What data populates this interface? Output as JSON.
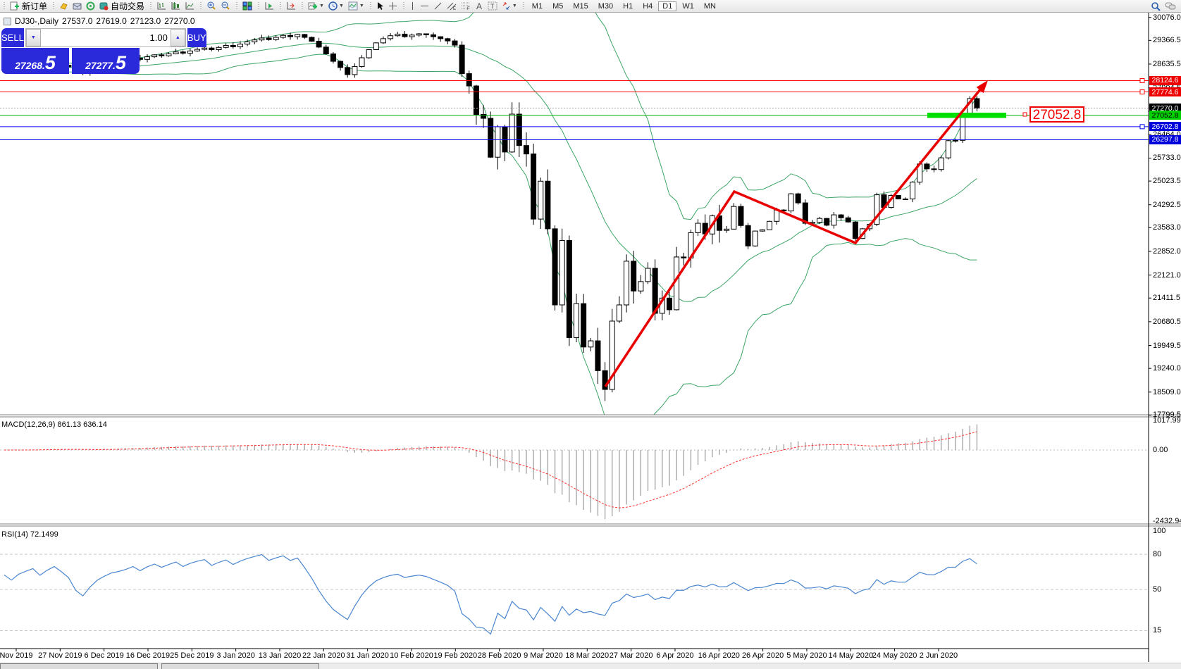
{
  "toolbar": {
    "new_order_label": "新订单",
    "auto_trading_label": "自动交易",
    "tool_groups": [
      {
        "items": [
          {
            "id": "new-order-icon",
            "label": "新订单"
          }
        ]
      },
      {
        "items": [
          {
            "id": "metaeditor-icon"
          },
          {
            "id": "mailbox-icon"
          },
          {
            "id": "signals-icon"
          },
          {
            "id": "auto-trading-icon",
            "label": "自动交易"
          }
        ]
      },
      {
        "items": [
          {
            "id": "bar-chart-icon"
          },
          {
            "id": "candle-chart-icon"
          },
          {
            "id": "line-chart-icon"
          }
        ]
      },
      {
        "items": [
          {
            "id": "zoom-in-icon"
          },
          {
            "id": "zoom-out-icon"
          }
        ]
      },
      {
        "items": [
          {
            "id": "tile-windows-icon"
          }
        ]
      },
      {
        "items": [
          {
            "id": "auto-scroll-icon"
          }
        ]
      },
      {
        "items": [
          {
            "id": "chart-shift-icon"
          }
        ]
      },
      {
        "items": [
          {
            "id": "indicators-icon",
            "caret": true
          },
          {
            "id": "periods-icon",
            "caret": true
          },
          {
            "id": "templates-icon",
            "caret": true
          }
        ]
      },
      {
        "items": [
          {
            "id": "cursor-icon"
          },
          {
            "id": "crosshair-icon"
          }
        ]
      },
      {
        "items": [
          {
            "id": "vertical-line-icon"
          },
          {
            "id": "horizontal-line-icon"
          },
          {
            "id": "trend-line-icon"
          },
          {
            "id": "channel-icon"
          },
          {
            "id": "fibonacci-icon"
          },
          {
            "id": "text-icon"
          },
          {
            "id": "text-label-icon"
          },
          {
            "id": "arrows-icon",
            "caret": true
          }
        ]
      }
    ],
    "timeframes": [
      "M1",
      "M5",
      "M15",
      "M30",
      "H1",
      "H4",
      "D1",
      "W1",
      "MN"
    ],
    "active_timeframe": "D1",
    "right_icons": [
      {
        "id": "search-icon"
      },
      {
        "id": "chat-icon"
      }
    ]
  },
  "chart_header": {
    "symbol_period": "DJ30-,Daily",
    "open": "27537.0",
    "high": "27619.0",
    "low": "27123.0",
    "close": "27270.0"
  },
  "one_click": {
    "sell_label": "SELL",
    "buy_label": "BUY",
    "volume": "1.00",
    "sell_big": "27268",
    "sell_frac": "5",
    "buy_big": "27277",
    "buy_frac": "5"
  },
  "price_axis": {
    "ticks": [
      30076.0,
      29366.5,
      28635.5,
      27904.5,
      27174.0,
      26464.0,
      25733.0,
      25023.5,
      24292.5,
      23583.0,
      22852.0,
      22121.0,
      21411.5,
      20680.5,
      19949.5,
      19240.0,
      18509.0,
      17799.5
    ]
  },
  "levels": [
    {
      "price": 28124.6,
      "label": "28124.6",
      "bg": "#ee0000",
      "fg": "#ffffff",
      "line": "#ff0000",
      "style": "solid",
      "anchor": true
    },
    {
      "price": 27774.6,
      "label": "27774.6",
      "bg": "#ee0000",
      "fg": "#ffffff",
      "line": "#ff0000",
      "style": "solid",
      "anchor": true
    },
    {
      "price": 27270.0,
      "label": "27270.0",
      "bg": "#000000",
      "fg": "#ffffff",
      "line": "#a8a8a8",
      "style": "dotted"
    },
    {
      "price": 27052.8,
      "label": "27052.8",
      "bg": "#00cf00",
      "fg": "#000000",
      "line": "#00b400",
      "style": "solid"
    },
    {
      "price": 26702.8,
      "label": "26702.8",
      "bg": "#0000dd",
      "fg": "#ffffff",
      "line": "#0000ee",
      "style": "solid",
      "anchor": true
    },
    {
      "price": 26297.8,
      "label": "26297.8",
      "bg": "#0000dd",
      "fg": "#ffffff",
      "line": "#0000ee",
      "style": "solid"
    }
  ],
  "annotations": {
    "callout_text": "27052.8",
    "highlight_color": "#00e000",
    "zigzag_color": "#e80000"
  },
  "macd": {
    "label": "MACD(12,26,9) 861.13 636.14",
    "axis_max": "1017.99",
    "axis_zero": "0.00",
    "axis_min": "-2432.94",
    "fast": 12,
    "slow": 26,
    "signal": 9
  },
  "rsi": {
    "label": "RSI(14) 72.1499",
    "period": 14,
    "axis_levels": [
      "100",
      "80",
      "50",
      "15"
    ]
  },
  "dates": [
    "Nov 2019",
    "27 Nov 2019",
    "6 Dec 2019",
    "16 Dec 2019",
    "25 Dec 2019",
    "3 Jan 2020",
    "13 Jan 2020",
    "22 Jan 2020",
    "31 Jan 2020",
    "10 Feb 2020",
    "19 Feb 2020",
    "28 Feb 2020",
    "9 Mar 2020",
    "18 Mar 2020",
    "27 Mar 2020",
    "6 Apr 2020",
    "16 Apr 2020",
    "26 Apr 2020",
    "5 May 2020",
    "14 May 2020",
    "24 May 2020",
    "2 Jun 2020"
  ],
  "chart_data": {
    "type": "candlestick",
    "symbol": "DJ30-",
    "period": "Daily",
    "indicators": [
      "Bollinger Bands(20,2)",
      "MACD(12,26,9)",
      "RSI(14)"
    ],
    "price_range": [
      17799.5,
      30076.0
    ],
    "closes": [
      28450,
      28410,
      28480,
      28520,
      28560,
      28510,
      28580,
      28640,
      28600,
      28550,
      28420,
      28350,
      28460,
      28560,
      28630,
      28690,
      28720,
      28760,
      28820,
      28780,
      28860,
      28920,
      28890,
      28950,
      29010,
      28970,
      29040,
      29090,
      29130,
      29080,
      29150,
      29210,
      29170,
      29250,
      29320,
      29380,
      29440,
      29390,
      29460,
      29520,
      29480,
      29550,
      29460,
      29340,
      29160,
      28950,
      28720,
      28530,
      28310,
      28560,
      28830,
      29080,
      29290,
      29420,
      29510,
      29560,
      29480,
      29530,
      29570,
      29540,
      29480,
      29420,
      29350,
      29220,
      28340,
      27960,
      27080,
      26960,
      25760,
      26700,
      25920,
      27090,
      26120,
      25860,
      23850,
      25020,
      23550,
      21200,
      23190,
      20190,
      21240,
      19900,
      20090,
      19170,
      18590,
      20700,
      21200,
      22550,
      21630,
      21920,
      22330,
      20940,
      21410,
      21050,
      22680,
      22650,
      23430,
      23720,
      23390,
      23950,
      23500,
      23540,
      24240,
      23650,
      23020,
      23480,
      23520,
      23780,
      24130,
      24100,
      24630,
      24350,
      23720,
      23750,
      23870,
      23660,
      23980,
      23890,
      23760,
      23250,
      23550,
      23690,
      24600,
      24210,
      24580,
      24470,
      24470,
      24990,
      25550,
      25400,
      25380,
      25740,
      26270,
      26280,
      27110,
      27570,
      27270
    ]
  }
}
